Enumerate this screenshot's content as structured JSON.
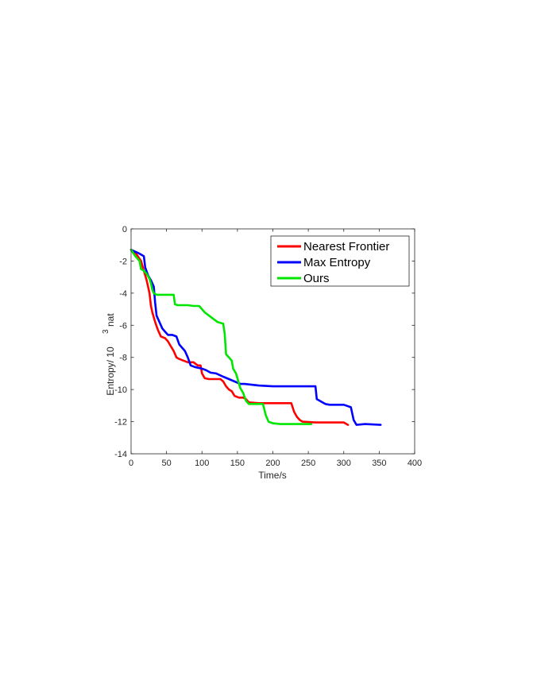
{
  "chart_data": {
    "type": "line",
    "xlabel": "Time/s",
    "ylabel": "Entropy/ 10",
    "ylabel_exponent": "3",
    "ylabel_unit": "nat",
    "xlim": [
      0,
      400
    ],
    "ylim": [
      -14,
      0
    ],
    "xticks": [
      0,
      50,
      100,
      150,
      200,
      250,
      300,
      350,
      400
    ],
    "yticks": [
      0,
      -2,
      -4,
      -6,
      -8,
      -10,
      -12,
      -14
    ],
    "grid": false,
    "legend_position": "top-right",
    "series": [
      {
        "name": "Nearest Frontier",
        "color": "#ff0000",
        "points": [
          [
            0,
            -1.3
          ],
          [
            8,
            -1.6
          ],
          [
            14,
            -2.0
          ],
          [
            18,
            -2.6
          ],
          [
            22,
            -3.2
          ],
          [
            26,
            -4.0
          ],
          [
            28,
            -4.8
          ],
          [
            30,
            -5.2
          ],
          [
            34,
            -5.8
          ],
          [
            38,
            -6.3
          ],
          [
            42,
            -6.7
          ],
          [
            48,
            -6.8
          ],
          [
            52,
            -7.0
          ],
          [
            56,
            -7.3
          ],
          [
            60,
            -7.6
          ],
          [
            64,
            -8.0
          ],
          [
            68,
            -8.1
          ],
          [
            74,
            -8.2
          ],
          [
            80,
            -8.3
          ],
          [
            88,
            -8.3
          ],
          [
            94,
            -8.5
          ],
          [
            98,
            -8.5
          ],
          [
            100,
            -9.0
          ],
          [
            104,
            -9.3
          ],
          [
            110,
            -9.35
          ],
          [
            126,
            -9.35
          ],
          [
            130,
            -9.5
          ],
          [
            134,
            -9.8
          ],
          [
            138,
            -10.0
          ],
          [
            142,
            -10.1
          ],
          [
            146,
            -10.4
          ],
          [
            152,
            -10.5
          ],
          [
            158,
            -10.5
          ],
          [
            162,
            -10.6
          ],
          [
            166,
            -10.8
          ],
          [
            180,
            -10.85
          ],
          [
            200,
            -10.85
          ],
          [
            226,
            -10.85
          ],
          [
            230,
            -11.4
          ],
          [
            234,
            -11.7
          ],
          [
            238,
            -11.9
          ],
          [
            242,
            -12.0
          ],
          [
            260,
            -12.05
          ],
          [
            300,
            -12.05
          ],
          [
            306,
            -12.2
          ]
        ]
      },
      {
        "name": "Max Entropy",
        "color": "#0000ff",
        "points": [
          [
            0,
            -1.3
          ],
          [
            10,
            -1.5
          ],
          [
            18,
            -1.7
          ],
          [
            20,
            -2.4
          ],
          [
            24,
            -2.9
          ],
          [
            28,
            -3.2
          ],
          [
            30,
            -3.4
          ],
          [
            32,
            -3.6
          ],
          [
            34,
            -4.6
          ],
          [
            36,
            -5.4
          ],
          [
            40,
            -5.8
          ],
          [
            44,
            -6.2
          ],
          [
            48,
            -6.4
          ],
          [
            52,
            -6.6
          ],
          [
            58,
            -6.6
          ],
          [
            64,
            -6.7
          ],
          [
            68,
            -7.2
          ],
          [
            72,
            -7.4
          ],
          [
            76,
            -7.6
          ],
          [
            80,
            -8.0
          ],
          [
            84,
            -8.5
          ],
          [
            90,
            -8.6
          ],
          [
            100,
            -8.7
          ],
          [
            106,
            -8.8
          ],
          [
            112,
            -8.95
          ],
          [
            120,
            -9.0
          ],
          [
            130,
            -9.2
          ],
          [
            138,
            -9.35
          ],
          [
            146,
            -9.5
          ],
          [
            154,
            -9.65
          ],
          [
            160,
            -9.65
          ],
          [
            170,
            -9.7
          ],
          [
            180,
            -9.75
          ],
          [
            200,
            -9.8
          ],
          [
            240,
            -9.8
          ],
          [
            260,
            -9.8
          ],
          [
            262,
            -10.6
          ],
          [
            266,
            -10.7
          ],
          [
            274,
            -10.9
          ],
          [
            280,
            -10.95
          ],
          [
            300,
            -10.95
          ],
          [
            310,
            -11.1
          ],
          [
            314,
            -11.9
          ],
          [
            318,
            -12.2
          ],
          [
            330,
            -12.15
          ],
          [
            352,
            -12.2
          ]
        ]
      },
      {
        "name": "Ours",
        "color": "#00e600",
        "points": [
          [
            0,
            -1.3
          ],
          [
            6,
            -1.7
          ],
          [
            12,
            -2.0
          ],
          [
            14,
            -2.5
          ],
          [
            18,
            -2.6
          ],
          [
            22,
            -2.8
          ],
          [
            26,
            -3.1
          ],
          [
            28,
            -3.4
          ],
          [
            30,
            -3.8
          ],
          [
            32,
            -4.0
          ],
          [
            36,
            -4.1
          ],
          [
            50,
            -4.1
          ],
          [
            60,
            -4.1
          ],
          [
            62,
            -4.7
          ],
          [
            66,
            -4.75
          ],
          [
            80,
            -4.75
          ],
          [
            88,
            -4.8
          ],
          [
            96,
            -4.8
          ],
          [
            100,
            -5.0
          ],
          [
            104,
            -5.2
          ],
          [
            110,
            -5.4
          ],
          [
            116,
            -5.6
          ],
          [
            122,
            -5.8
          ],
          [
            130,
            -5.9
          ],
          [
            132,
            -6.5
          ],
          [
            134,
            -7.8
          ],
          [
            138,
            -8.0
          ],
          [
            142,
            -8.2
          ],
          [
            144,
            -8.7
          ],
          [
            148,
            -9.0
          ],
          [
            150,
            -9.3
          ],
          [
            154,
            -9.9
          ],
          [
            158,
            -10.2
          ],
          [
            162,
            -10.7
          ],
          [
            166,
            -10.9
          ],
          [
            180,
            -10.9
          ],
          [
            186,
            -10.9
          ],
          [
            190,
            -11.6
          ],
          [
            194,
            -12.0
          ],
          [
            200,
            -12.1
          ],
          [
            210,
            -12.15
          ],
          [
            254,
            -12.15
          ]
        ]
      }
    ]
  }
}
